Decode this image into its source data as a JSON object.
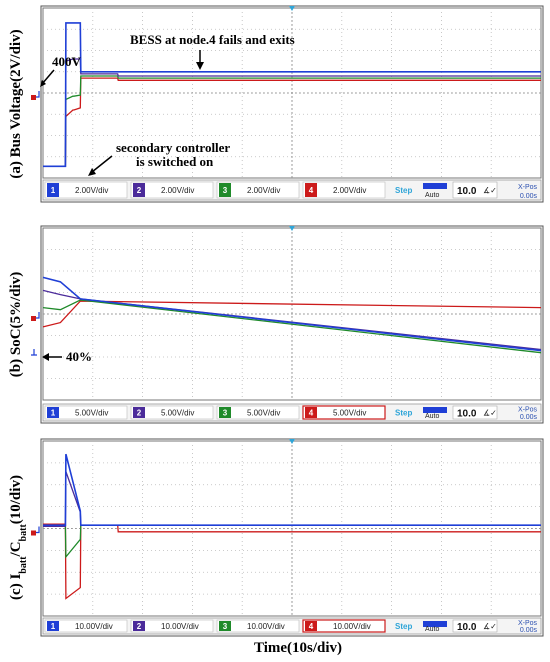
{
  "figure": {
    "x_axis_label": "Time(10s/div)",
    "panels": [
      {
        "label": "(a) Bus Voltage(2V/div)",
        "label_parts": null,
        "annotations": [
          {
            "id": "v400",
            "text": "400V"
          },
          {
            "id": "bess",
            "text": "BESS at node.4 fails and exits"
          },
          {
            "id": "sec1",
            "text": "secondary controller"
          },
          {
            "id": "sec2",
            "text": "is switched on"
          }
        ],
        "channels": [
          {
            "num": "1",
            "scale": "2.00V/div"
          },
          {
            "num": "2",
            "scale": "2.00V/div"
          },
          {
            "num": "3",
            "scale": "2.00V/div"
          },
          {
            "num": "4",
            "scale": "2.00V/div"
          }
        ],
        "step_label": "Step",
        "auto_label": "Auto",
        "timebase": "10.0",
        "xpos_label": "X-Pos",
        "xpos_value": "0.00s"
      },
      {
        "label": "(b) SoC(5%/div)",
        "annotations": [
          {
            "id": "p40",
            "text": "40%"
          }
        ],
        "channels": [
          {
            "num": "1",
            "scale": "5.00V/div"
          },
          {
            "num": "2",
            "scale": "5.00V/div"
          },
          {
            "num": "3",
            "scale": "5.00V/div"
          },
          {
            "num": "4",
            "scale": "5.00V/div"
          }
        ],
        "step_label": "Step",
        "auto_label": "Auto",
        "timebase": "10.0",
        "xpos_label": "X-Pos",
        "xpos_value": "0.00s"
      },
      {
        "label_main": "(c) I",
        "label_sub1": "batt",
        "label_mid": "/C",
        "label_sub2": "batt",
        "label_tail": "(10/div)",
        "annotations": [],
        "channels": [
          {
            "num": "1",
            "scale": "10.00V/div"
          },
          {
            "num": "2",
            "scale": "10.00V/div"
          },
          {
            "num": "3",
            "scale": "10.00V/div"
          },
          {
            "num": "4",
            "scale": "10.00V/div"
          }
        ],
        "step_label": "Step",
        "auto_label": "Auto",
        "timebase": "10.0",
        "xpos_label": "X-Pos",
        "xpos_value": "0.00s"
      }
    ]
  },
  "colors": {
    "ch1": "#1f3fd6",
    "ch2": "#4b2b9a",
    "ch3": "#1f8a2a",
    "ch4": "#cc1a1a",
    "grid": "#8a8a8a",
    "grid_minor": "#bbbbbb"
  },
  "chart_data": [
    {
      "type": "line",
      "title": "(a) Bus Voltage(2V/div)",
      "xlabel": "Time(10s/div)",
      "ylabel": "Bus Voltage (2V/div)",
      "xlim": [
        0,
        100
      ],
      "ylim": [
        -8,
        8
      ],
      "x": [
        0,
        4.5,
        4.6,
        6,
        6.2,
        7.5,
        7.6,
        15,
        15.1,
        100
      ],
      "series": [
        {
          "name": "1",
          "values": [
            -6.9,
            -6.9,
            6.6,
            6.6,
            6.6,
            6.6,
            2.0,
            2.0,
            2.0,
            2.0
          ]
        },
        {
          "name": "2",
          "values": [
            -6.9,
            -6.9,
            3.0,
            3.2,
            3.2,
            3.2,
            1.8,
            1.8,
            1.6,
            1.6
          ]
        },
        {
          "name": "3",
          "values": [
            -6.9,
            -6.9,
            -0.6,
            -0.3,
            -0.3,
            -0.2,
            1.6,
            1.6,
            1.4,
            1.4
          ]
        },
        {
          "name": "4",
          "values": [
            -6.9,
            -6.9,
            -2.2,
            -1.6,
            -1.6,
            -1.4,
            1.4,
            1.4,
            1.2,
            1.2
          ]
        }
      ]
    },
    {
      "type": "line",
      "title": "(b) SoC(5%/div)",
      "xlabel": "Time(10s/div)",
      "ylabel": "SoC (5%/div)",
      "xlim": [
        0,
        100
      ],
      "ylim": [
        -8,
        8
      ],
      "x": [
        0,
        3.5,
        7.5,
        100
      ],
      "series": [
        {
          "name": "1",
          "values": [
            3.4,
            3.0,
            1.4,
            -3.4
          ]
        },
        {
          "name": "2",
          "values": [
            2.2,
            1.8,
            1.4,
            -3.3
          ]
        },
        {
          "name": "3",
          "values": [
            0.6,
            0.4,
            1.3,
            -3.6
          ]
        },
        {
          "name": "4",
          "values": [
            -1.2,
            -0.8,
            1.2,
            0.6
          ]
        }
      ]
    },
    {
      "type": "line",
      "title": "(c) Ibatt/Cbatt(10/div)",
      "xlabel": "Time(10s/div)",
      "ylabel": "Ibatt/Cbatt (10/div)",
      "xlim": [
        0,
        100
      ],
      "ylim": [
        -8,
        8
      ],
      "x": [
        0,
        4.5,
        4.6,
        7.5,
        7.6,
        15,
        15.1,
        100
      ],
      "series": [
        {
          "name": "1",
          "values": [
            0.3,
            0.3,
            6.8,
            1.6,
            0.3,
            0.3,
            0.3,
            0.3
          ]
        },
        {
          "name": "2",
          "values": [
            0.2,
            0.2,
            5.2,
            1.5,
            0.3,
            0.3,
            0.3,
            0.3
          ]
        },
        {
          "name": "3",
          "values": [
            0.2,
            0.2,
            -2.6,
            -1.0,
            0.3,
            0.3,
            0.3,
            0.3
          ]
        },
        {
          "name": "4",
          "values": [
            0.4,
            0.4,
            -6.4,
            -5.4,
            0.3,
            0.3,
            -0.3,
            -0.3
          ]
        }
      ]
    }
  ]
}
